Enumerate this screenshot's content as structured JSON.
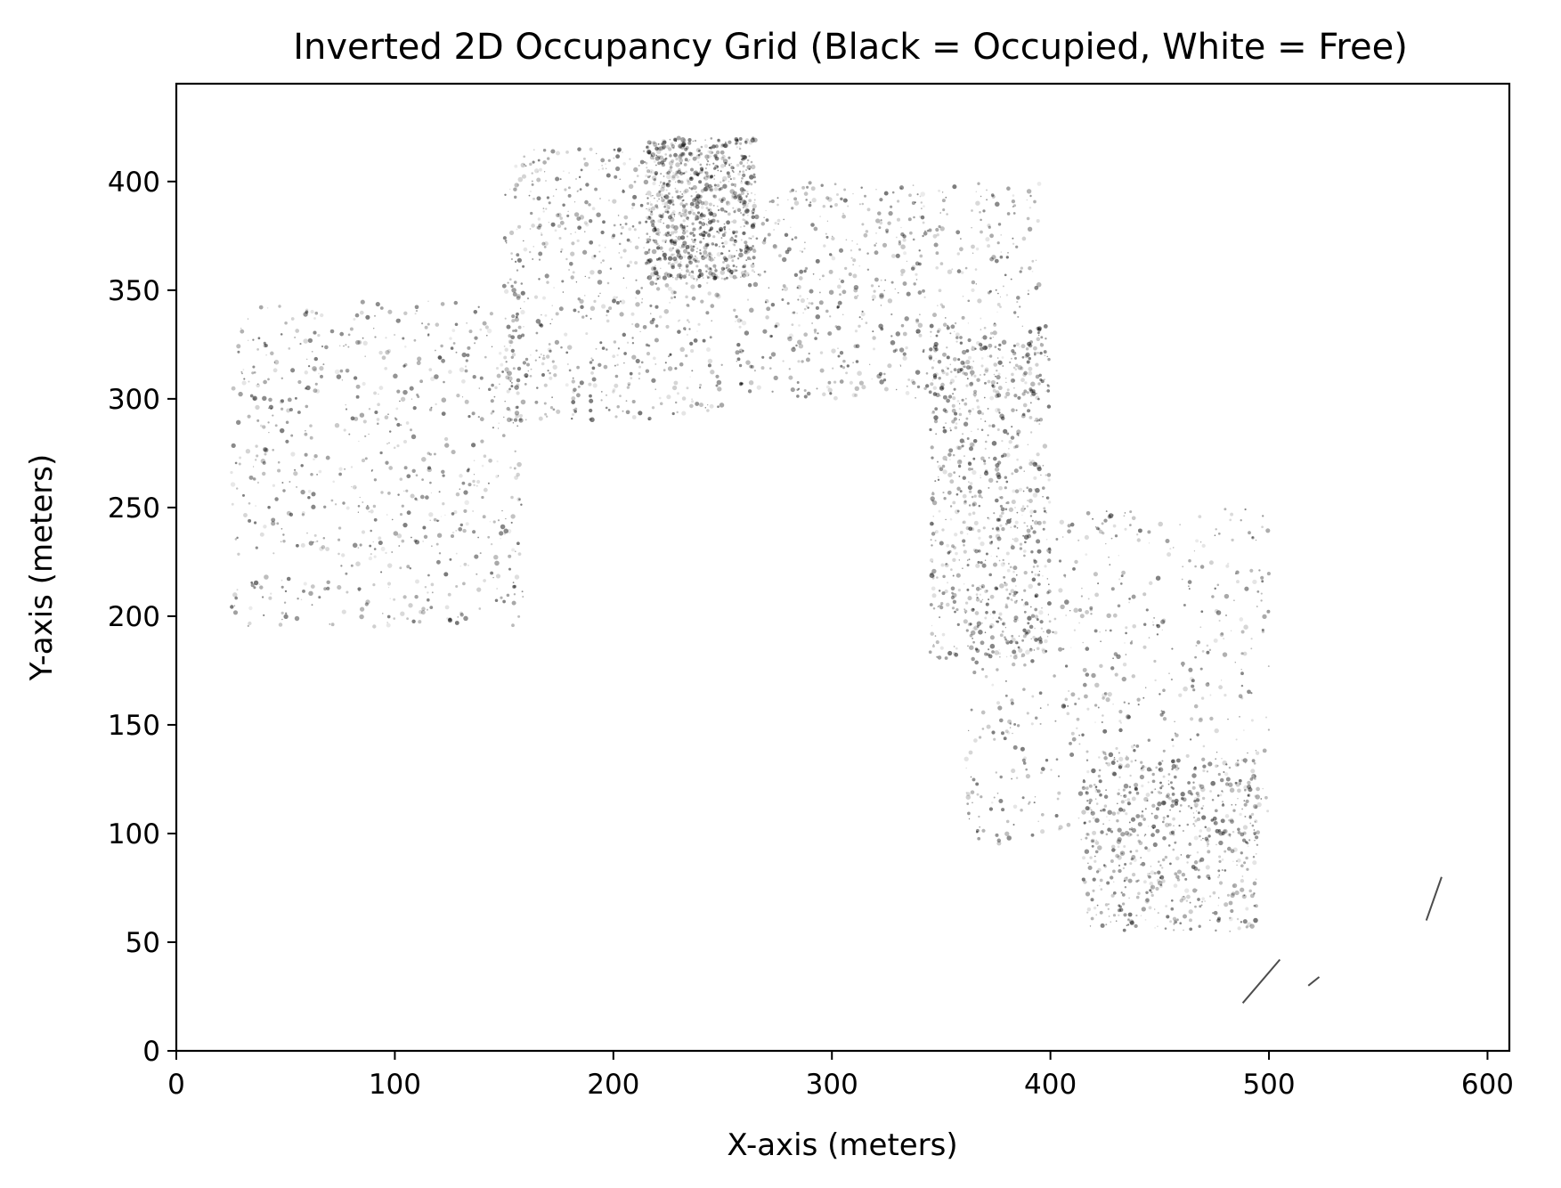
{
  "chart_data": {
    "type": "heatmap",
    "title": "Inverted 2D Occupancy Grid (Black = Occupied, White = Free)",
    "xlabel": "X-axis (meters)",
    "ylabel": "Y-axis (meters)",
    "xlim": [
      0,
      610
    ],
    "ylim": [
      0,
      445
    ],
    "xticks": [
      0,
      100,
      200,
      300,
      400,
      500,
      600
    ],
    "yticks": [
      0,
      50,
      100,
      150,
      200,
      250,
      300,
      350,
      400
    ],
    "xtick_labels": [
      "0",
      "100",
      "200",
      "300",
      "400",
      "500",
      "600"
    ],
    "ytick_labels": [
      "0",
      "50",
      "100",
      "150",
      "200",
      "250",
      "300",
      "350",
      "400"
    ],
    "grid": false,
    "colormap": "gray_r",
    "colors": {
      "occupied": "#000000",
      "free": "#ffffff"
    },
    "occupied_regions": [
      {
        "x": [
          25,
          160
        ],
        "y": [
          195,
          345
        ],
        "density": 0.8
      },
      {
        "x": [
          150,
          250
        ],
        "y": [
          290,
          415
        ],
        "density": 0.75
      },
      {
        "x": [
          215,
          265
        ],
        "y": [
          355,
          420
        ],
        "density": 0.85
      },
      {
        "x": [
          255,
          395
        ],
        "y": [
          300,
          400
        ],
        "density": 0.7
      },
      {
        "x": [
          345,
          400
        ],
        "y": [
          180,
          335
        ],
        "density": 0.8
      },
      {
        "x": [
          360,
          500
        ],
        "y": [
          95,
          250
        ],
        "density": 0.75
      },
      {
        "x": [
          415,
          495
        ],
        "y": [
          55,
          135
        ],
        "density": 0.6
      }
    ],
    "occupied_segments": [
      {
        "x": [
          488,
          505
        ],
        "y": [
          22,
          42
        ]
      },
      {
        "x": [
          518,
          523
        ],
        "y": [
          30,
          34
        ]
      },
      {
        "x": [
          572,
          579
        ],
        "y": [
          60,
          80
        ]
      }
    ]
  }
}
